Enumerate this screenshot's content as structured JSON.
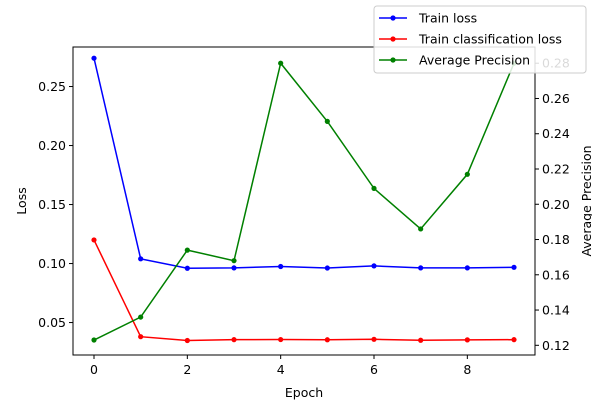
{
  "chart_data": {
    "type": "line",
    "x": [
      0,
      1,
      2,
      3,
      4,
      5,
      6,
      7,
      8,
      9
    ],
    "xlabel": "Epoch",
    "ylabel": "Loss",
    "ylabel_right": "Average Precision",
    "xlim": [
      -0.45,
      9.45
    ],
    "ylim": [
      0.0225,
      0.2835
    ],
    "ylim_right": [
      0.1145,
      0.2892
    ],
    "x_ticks": [
      0,
      2,
      4,
      6,
      8
    ],
    "y_ticks": [
      0.05,
      0.1,
      0.15,
      0.2,
      0.25
    ],
    "y_ticks_right": [
      0.12,
      0.14,
      0.16,
      0.18,
      0.2,
      0.22,
      0.24,
      0.26,
      0.28
    ],
    "grid": false,
    "legend_position": "top-right (outside plot)",
    "series": [
      {
        "name": "Train loss",
        "axis": "left",
        "color": "#0000ff",
        "values": [
          0.274,
          0.104,
          0.096,
          0.0963,
          0.0975,
          0.0962,
          0.098,
          0.0963,
          0.0963,
          0.0968
        ]
      },
      {
        "name": "Train classification loss",
        "axis": "left",
        "color": "#ff0000",
        "values": [
          0.12,
          0.038,
          0.0348,
          0.0355,
          0.0356,
          0.0354,
          0.0358,
          0.035,
          0.0353,
          0.0355
        ]
      },
      {
        "name": "Average Precision",
        "axis": "right",
        "color": "#008000",
        "values": [
          0.123,
          0.136,
          0.174,
          0.168,
          0.28,
          0.247,
          0.209,
          0.186,
          0.217,
          0.28
        ]
      }
    ]
  }
}
